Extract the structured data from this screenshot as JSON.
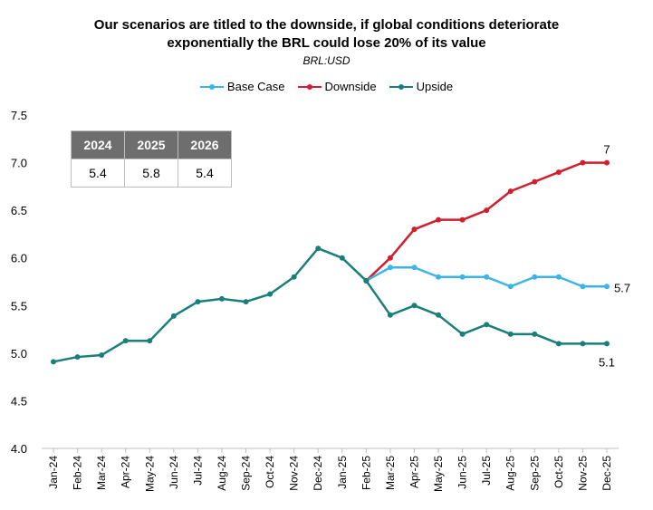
{
  "chart_data": {
    "type": "line",
    "title": "Our scenarios are titled to the downside, if global conditions deteriorate exponentially the BRL could lose 20% of its value",
    "title_lines": [
      "Our scenarios are titled to the downside, if global conditions deteriorate",
      "exponentially the BRL could lose 20% of its value"
    ],
    "subtitle": "BRL:USD",
    "xlabel": "",
    "ylabel": "",
    "ylim": [
      4.0,
      7.5
    ],
    "yticks": [
      "4.0",
      "4.5",
      "5.0",
      "5.5",
      "6.0",
      "6.5",
      "7.0",
      "7.5"
    ],
    "grid": false,
    "legend_position": "top-center",
    "categories": [
      "Jan-24",
      "Feb-24",
      "Mar-24",
      "Apr-24",
      "May-24",
      "Jun-24",
      "Jul-24",
      "Aug-24",
      "Sep-24",
      "Oct-24",
      "Nov-24",
      "Dec-24",
      "Jan-25",
      "Feb-25",
      "Mar-25",
      "Apr-25",
      "May-25",
      "Jun-25",
      "Jul-25",
      "Aug-25",
      "Sep-25",
      "Oct-25",
      "Nov-25",
      "Dec-25"
    ],
    "series": [
      {
        "name": "Base Case",
        "color": "#3bb4e6",
        "values": [
          null,
          null,
          null,
          null,
          null,
          null,
          null,
          null,
          null,
          null,
          null,
          null,
          null,
          5.76,
          5.9,
          5.9,
          5.8,
          5.8,
          5.8,
          5.7,
          5.8,
          5.8,
          5.7,
          5.7
        ],
        "end_label": "5.7"
      },
      {
        "name": "Downside",
        "color": "#d0202e",
        "values": [
          null,
          null,
          null,
          null,
          null,
          null,
          null,
          null,
          null,
          null,
          null,
          null,
          null,
          5.76,
          6.0,
          6.3,
          6.4,
          6.4,
          6.5,
          6.7,
          6.8,
          6.9,
          7.0,
          7.0
        ],
        "end_label": "7"
      },
      {
        "name": "Upside",
        "color": "#1a7f7a",
        "values": [
          4.91,
          4.96,
          4.98,
          5.13,
          5.13,
          5.39,
          5.54,
          5.57,
          5.54,
          5.62,
          5.8,
          6.1,
          6.0,
          5.76,
          5.4,
          5.5,
          5.4,
          5.2,
          5.3,
          5.2,
          5.2,
          5.1,
          5.1,
          5.1
        ],
        "end_label": "5.1"
      }
    ],
    "inset_table": {
      "headers": [
        "2024",
        "2025",
        "2026"
      ],
      "values": [
        "5.4",
        "5.8",
        "5.4"
      ]
    }
  }
}
